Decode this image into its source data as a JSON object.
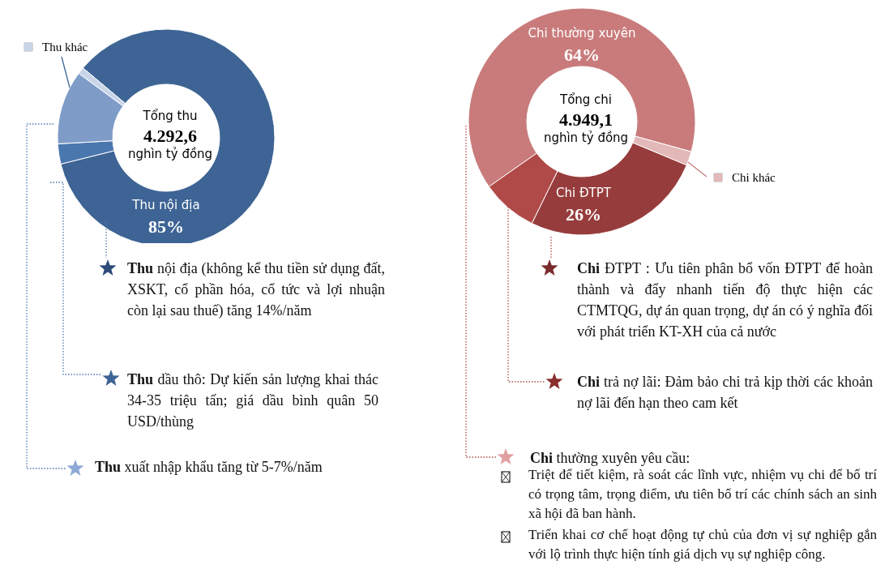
{
  "chart_data": [
    {
      "type": "donut",
      "title": "Tổng thu",
      "subtitle": "4.292,6 nghìn tỷ đồng",
      "categories": [
        "Thu nội địa",
        null,
        null,
        "Thu khác"
      ],
      "values": [
        85,
        3,
        11,
        1
      ],
      "colors": [
        "#3d6494",
        "#4a77ae",
        "#7f9cc8",
        "#c8d4e8"
      ],
      "value_labels": [
        "85%",
        null,
        null,
        null
      ],
      "annotations": [
        "Thu nội địa (không kể thu tiền sử dụng đất, XSKT, cổ phần hóa, cổ tức và lợi nhuận còn lại sau thuế) tăng 14%/năm",
        "Thu dầu thô: Dự kiến sản lượng khai thác 34-35 triệu tấn; giá dầu bình quân 50 USD/thùng",
        "Thu xuất nhập khẩu tăng từ 5-7%/năm"
      ]
    },
    {
      "type": "donut",
      "title": "Tổng chi",
      "subtitle": "4.949,1 nghìn tỷ đồng",
      "categories": [
        "Chi thường xuyên",
        "Chi khác",
        "Chi ĐTPT",
        null
      ],
      "values": [
        64,
        2,
        26,
        8
      ],
      "colors": [
        "#c97b7b",
        "#e3b8b8",
        "#973c3c",
        "#b04a48"
      ],
      "value_labels": [
        "64%",
        null,
        "26%",
        null
      ],
      "annotations": [
        "Chi ĐTPT : Ưu tiên phân bổ vốn ĐTPT để hoàn thành và đẩy nhanh tiến độ thực hiện các CTMTQG, dự án quan trọng, dự án có ý nghĩa đối với phát triển KT-XH của cả nước",
        "Chi trả nợ lãi: Đảm bảo chi trả kịp thời các khoản nợ lãi đến hạn theo cam kết",
        "Chi thường xuyên yêu cầu:",
        "Triệt để tiết kiệm, rà soát các lĩnh vực, nhiệm vụ chi để bố trí có trọng tâm, trọng điểm, ưu tiên bố trí các chính sách an sinh xã hội đã ban hành.",
        "Triển khai cơ chế hoạt động tự chủ của đơn vị sự nghiệp gắn với lộ trình thực hiện tính giá dịch vụ sự nghiệp công."
      ]
    }
  ]
}
